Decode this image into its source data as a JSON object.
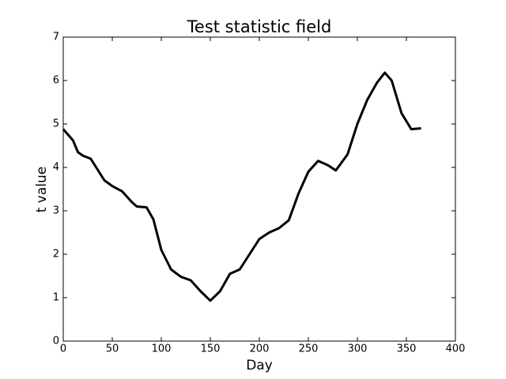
{
  "chart_data": {
    "type": "line",
    "title": "Test statistic field",
    "xlabel": "Day",
    "ylabel": "t value",
    "x": [
      0,
      10,
      15,
      20,
      28,
      35,
      42,
      50,
      60,
      70,
      75,
      85,
      92,
      100,
      110,
      120,
      130,
      140,
      150,
      160,
      170,
      180,
      190,
      200,
      210,
      220,
      230,
      240,
      250,
      260,
      270,
      278,
      290,
      300,
      310,
      320,
      328,
      335,
      345,
      355,
      365
    ],
    "values": [
      4.88,
      4.62,
      4.35,
      4.27,
      4.2,
      3.95,
      3.7,
      3.57,
      3.45,
      3.2,
      3.1,
      3.08,
      2.8,
      2.1,
      1.65,
      1.48,
      1.4,
      1.15,
      0.93,
      1.15,
      1.55,
      1.65,
      2.0,
      2.35,
      2.5,
      2.6,
      2.78,
      3.4,
      3.9,
      4.15,
      4.05,
      3.93,
      4.3,
      5.0,
      5.55,
      5.95,
      6.18,
      6.0,
      5.25,
      4.88,
      4.9
    ],
    "color": "#000000",
    "xlim": [
      0,
      400
    ],
    "xticks": [
      0,
      50,
      100,
      150,
      200,
      250,
      300,
      350,
      400
    ],
    "ylim": [
      0,
      7
    ],
    "yticks": [
      0,
      1,
      2,
      3,
      4,
      5,
      6,
      7
    ],
    "grid": false
  }
}
